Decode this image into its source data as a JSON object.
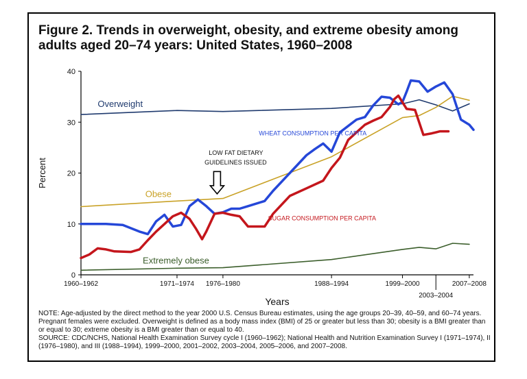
{
  "figure_title": "Figure 2. Trends in overweight, obesity, and extreme obesity among adults aged 20–74 years: United States, 1960–2008",
  "notes": [
    "NOTE: Age-adjusted by the direct method to the year 2000 U.S. Census Bureau estimates, using the age groups 20–39, 40–59, and 60–74 years. Pregnant females were excluded. Overweight is defined as a body mass index (BMI) of 25 or greater but less than 30; obesity is a BMI greater than or equal to 30; extreme obesity is a BMI greater than or equal to 40.",
    "SOURCE: CDC/NCHS, National Health Examination Survey cycle I (1960–1962); National Health and Nutrition Examination Survey I (1971–1974), II (1976–1980), and III (1988–1994), 1999–2000, 2001–2002, 2003–2004, 2005–2006, and 2007–2008."
  ],
  "chart_data": {
    "type": "line",
    "xlabel": "Years",
    "ylabel": "Percent",
    "ylim": [
      0,
      40
    ],
    "xlim": [
      1961,
      2008
    ],
    "y_ticks": [
      0,
      10,
      20,
      30,
      40
    ],
    "x_ticks": [
      {
        "label": "1960–1962",
        "x": 1961,
        "row": 0
      },
      {
        "label": "1971–1974",
        "x": 1972.5,
        "row": 0
      },
      {
        "label": "1976–1980",
        "x": 1978,
        "row": 0
      },
      {
        "label": "1988–1994",
        "x": 1991,
        "row": 0
      },
      {
        "label": "1999–2000",
        "x": 1999.5,
        "row": 0
      },
      {
        "label": "2003–2004",
        "x": 2003.5,
        "row": 1
      },
      {
        "label": "2007–2008",
        "x": 2007.5,
        "row": 0
      }
    ],
    "grid": false,
    "series": [
      {
        "name": "Overweight",
        "color": "#1f3a6e",
        "width": 1.6,
        "points": [
          [
            1961,
            31.5
          ],
          [
            1972.5,
            32.3
          ],
          [
            1978,
            32.1
          ],
          [
            1991,
            32.7
          ],
          [
            1999.5,
            33.6
          ],
          [
            2001.5,
            34.4
          ],
          [
            2003.5,
            33.4
          ],
          [
            2005.5,
            32.2
          ],
          [
            2007.5,
            33.6
          ]
        ]
      },
      {
        "name": "Obese",
        "color": "#c9a227",
        "width": 1.6,
        "points": [
          [
            1961,
            13.4
          ],
          [
            1972.5,
            14.5
          ],
          [
            1978,
            15.0
          ],
          [
            1991,
            23.2
          ],
          [
            1999.5,
            30.9
          ],
          [
            2001.5,
            31.3
          ],
          [
            2003.5,
            32.9
          ],
          [
            2005.5,
            35.1
          ],
          [
            2007.5,
            34.3
          ]
        ]
      },
      {
        "name": "Extremely obese",
        "color": "#3b5e2b",
        "width": 1.6,
        "points": [
          [
            1961,
            0.9
          ],
          [
            1972.5,
            1.3
          ],
          [
            1978,
            1.4
          ],
          [
            1991,
            3.0
          ],
          [
            1999.5,
            5.0
          ],
          [
            2001.5,
            5.4
          ],
          [
            2003.5,
            5.1
          ],
          [
            2005.5,
            6.2
          ],
          [
            2007.5,
            6.0
          ]
        ]
      },
      {
        "name": "WHEAT CONSUMPTION PER CAPITA",
        "color": "#2547d8",
        "width": 3.5,
        "points": [
          [
            1961,
            10.0
          ],
          [
            1964,
            10.0
          ],
          [
            1966,
            9.8
          ],
          [
            1968,
            8.5
          ],
          [
            1969,
            8.0
          ],
          [
            1970,
            10.5
          ],
          [
            1971,
            11.8
          ],
          [
            1972,
            9.5
          ],
          [
            1973,
            9.8
          ],
          [
            1974,
            13.5
          ],
          [
            1975,
            14.8
          ],
          [
            1976,
            13.5
          ],
          [
            1977,
            12.0
          ],
          [
            1978,
            12.3
          ],
          [
            1979,
            13.0
          ],
          [
            1980,
            13.0
          ],
          [
            1981,
            13.5
          ],
          [
            1983,
            14.5
          ],
          [
            1984,
            16.5
          ],
          [
            1986,
            20.0
          ],
          [
            1988,
            23.5
          ],
          [
            1989,
            24.7
          ],
          [
            1990,
            25.8
          ],
          [
            1991,
            24.2
          ],
          [
            1992,
            28.0
          ],
          [
            1994,
            30.5
          ],
          [
            1995,
            31.0
          ],
          [
            1996,
            33.3
          ],
          [
            1997,
            35.0
          ],
          [
            1998,
            34.8
          ],
          [
            1999,
            33.5
          ],
          [
            1999.5,
            34.0
          ],
          [
            2000,
            36.0
          ],
          [
            2000.5,
            38.2
          ],
          [
            2001.5,
            38.0
          ],
          [
            2002.5,
            36.0
          ],
          [
            2003.5,
            37.0
          ],
          [
            2004.5,
            37.8
          ],
          [
            2005.5,
            35.5
          ],
          [
            2006.5,
            30.5
          ],
          [
            2007.5,
            29.5
          ],
          [
            2008,
            28.5
          ]
        ]
      },
      {
        "name": "SUGAR CONSUMPTION PER CAPITA",
        "color": "#c4161c",
        "width": 3.5,
        "points": [
          [
            1961,
            3.3
          ],
          [
            1962,
            4.0
          ],
          [
            1963,
            5.2
          ],
          [
            1964,
            5.0
          ],
          [
            1965,
            4.6
          ],
          [
            1967,
            4.5
          ],
          [
            1968,
            5.0
          ],
          [
            1969,
            6.8
          ],
          [
            1970,
            8.5
          ],
          [
            1971,
            10.0
          ],
          [
            1972,
            11.5
          ],
          [
            1973,
            12.2
          ],
          [
            1974,
            11.0
          ],
          [
            1974.8,
            9.0
          ],
          [
            1975.5,
            7.0
          ],
          [
            1976,
            8.5
          ],
          [
            1977,
            12.0
          ],
          [
            1978,
            12.2
          ],
          [
            1979,
            11.8
          ],
          [
            1980,
            11.5
          ],
          [
            1981,
            9.5
          ],
          [
            1983,
            9.5
          ],
          [
            1984,
            12.0
          ],
          [
            1986,
            15.5
          ],
          [
            1988,
            17.0
          ],
          [
            1990,
            18.5
          ],
          [
            1991,
            21.0
          ],
          [
            1992,
            23.0
          ],
          [
            1993,
            26.5
          ],
          [
            1994,
            28.0
          ],
          [
            1995,
            29.5
          ],
          [
            1996,
            30.3
          ],
          [
            1997,
            31.0
          ],
          [
            1998,
            33.0
          ],
          [
            1998.5,
            34.5
          ],
          [
            1999,
            35.2
          ],
          [
            2000,
            32.6
          ],
          [
            2001,
            32.4
          ],
          [
            2002,
            27.5
          ],
          [
            2003,
            27.8
          ],
          [
            2004,
            28.2
          ],
          [
            2005,
            28.2
          ]
        ]
      }
    ],
    "annotations": [
      {
        "text": "Overweight",
        "x": 1963,
        "y": 33.0,
        "color": "#1f3a6e",
        "size": 13
      },
      {
        "text": "Obese",
        "x": 1968.7,
        "y": 15.3,
        "color": "#c9a227",
        "size": 13
      },
      {
        "text": "Extremely obese",
        "x": 1968.4,
        "y": 2.2,
        "color": "#3b5e2b",
        "size": 13
      },
      {
        "text": "WHEAT CONSUMPTION PER CAPITA",
        "x": 1982.3,
        "y": 27.4,
        "color": "#2547d8",
        "size": 9
      },
      {
        "text": "SUGAR CONSUMPTION PER CAPITA",
        "x": 1983.4,
        "y": 10.7,
        "color": "#c4161c",
        "size": 9
      },
      {
        "text": "LOW FAT DIETARY",
        "x": 1976.3,
        "y": 23.6,
        "color": "#111111",
        "size": 9
      },
      {
        "text": "GUIDELINES ISSUED",
        "x": 1975.8,
        "y": 21.7,
        "color": "#111111",
        "size": 9
      }
    ],
    "arrow": {
      "x": 1977.3,
      "y_from": 20.3,
      "y_to": 15.9
    }
  }
}
